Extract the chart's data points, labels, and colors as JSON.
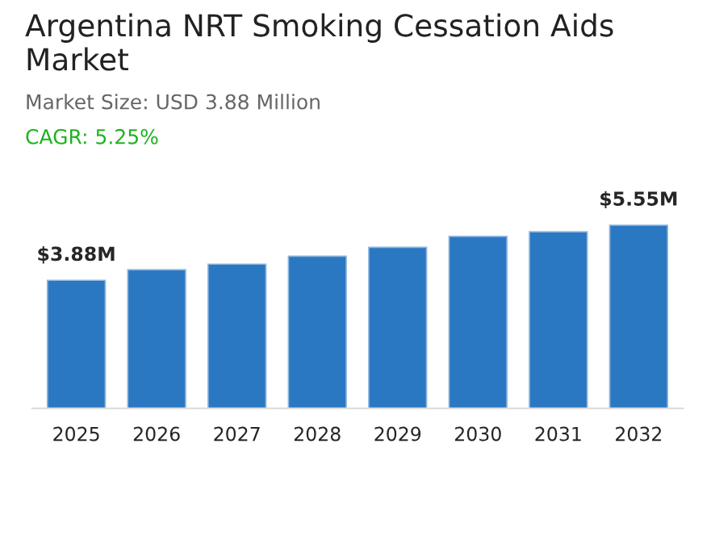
{
  "chart_data": {
    "type": "bar",
    "title": "Argentina NRT Smoking Cessation Aids Market",
    "subtitle": "Market Size: USD 3.88 Million",
    "annotations": [
      "CAGR: 5.25%"
    ],
    "categories": [
      "2025",
      "2026",
      "2027",
      "2028",
      "2029",
      "2030",
      "2031",
      "2032"
    ],
    "values": [
      3.88,
      4.2,
      4.37,
      4.61,
      4.88,
      5.21,
      5.35,
      5.55
    ],
    "value_labels": [
      "$3.88M",
      null,
      null,
      null,
      null,
      null,
      null,
      "$5.55M"
    ],
    "color": "#2b78c2",
    "tick_labels": "x",
    "grid": false,
    "legend": false
  }
}
